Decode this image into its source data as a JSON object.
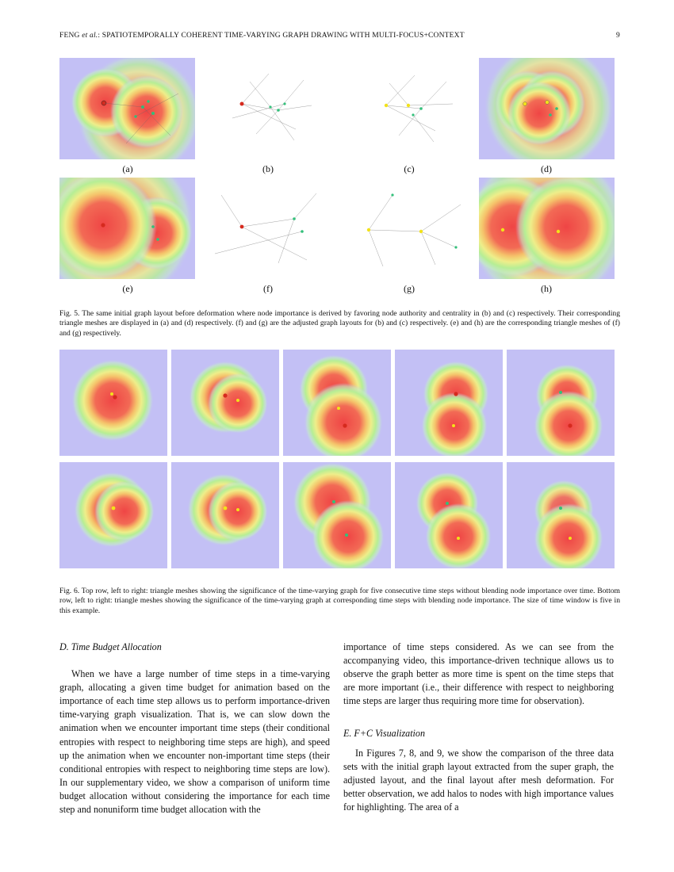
{
  "header": {
    "title_prefix": "FENG ",
    "title_etal": "et al.",
    "title_rest": ": SPATIOTEMPORALLY COHERENT TIME-VARYING GRAPH DRAWING WITH MULTI-FOCUS+CONTEXT",
    "page_number": "9"
  },
  "figure5": {
    "labels": [
      "(a)",
      "(b)",
      "(c)",
      "(d)",
      "(e)",
      "(f)",
      "(g)",
      "(h)"
    ],
    "caption": "Fig. 5.   The same initial graph layout before deformation where node importance is derived by favoring node authority and centrality in (b) and (c) respectively. Their corresponding triangle meshes are displayed in (a) and (d) respectively. (f) and (g) are the adjusted graph layouts for (b) and (c) respectively. (e) and (h) are the corresponding triangle meshes of (f) and (g) respectively."
  },
  "figure6": {
    "caption": "Fig. 6.   Top row, left to right: triangle meshes showing the significance of the time-varying graph for five consecutive time steps without blending node importance over time. Bottom row, left to right: triangle meshes showing the significance of the time-varying graph at corresponding time steps with blending node importance. The size of time window is five in this example."
  },
  "section_d": {
    "heading": "D.  Time Budget Allocation",
    "paragraph": "When we have a large number of time steps in a time-varying graph, allocating a given time budget for animation based on the importance of each time step allows us to perform importance-driven time-varying graph visualization. That is, we can slow down the animation when we encounter important time steps (their conditional entropies with respect to neighboring time steps are high), and speed up the animation when we encounter non-important time steps (their conditional entropies with respect to neighboring time steps are low). In our supplementary video, we show a comparison of uniform time budget allocation without considering the importance for each time step and nonuniform time budget allocation with the",
    "continuation": "importance of time steps considered. As we can see from the accompanying video, this importance-driven technique allows us to observe the graph better as more time is spent on the time steps that are more important (i.e., their difference with respect to neighboring time steps are larger thus requiring more time for observation)."
  },
  "section_e": {
    "heading": "E.  F+C Visualization",
    "paragraph": "In Figures 7, 8, and 9, we show the comparison of the three data sets with the initial graph layout extracted from the super graph, the adjusted layout, and the final layout after mesh deformation. For better observation, we add halos to nodes with high importance values for highlighting. The area of a"
  },
  "colors": {
    "mesh_background": "#c3c0f5",
    "heat_green": "#b9ef8e",
    "heat_yellow": "#f3ec86",
    "heat_red": "#ef4d4d",
    "node_focus_red": "#d62a1e",
    "node_focus_yellow": "#f2e21a",
    "node_green": "#33c07a",
    "edge_gray": "#8a8a8a"
  }
}
